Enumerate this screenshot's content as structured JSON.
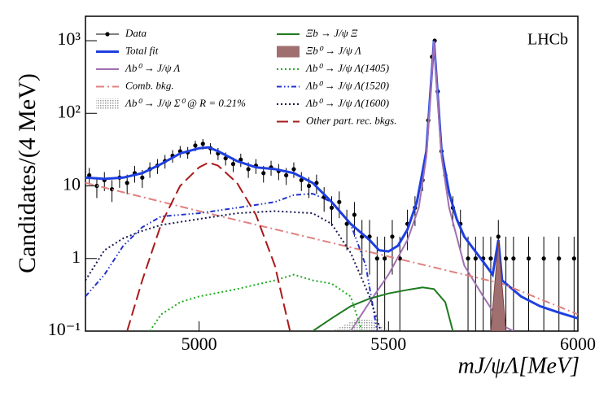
{
  "chart_data": {
    "type": "line",
    "log_y": true,
    "x_label": "mJ/ψΛ[MeV]",
    "y_label": "Candidates/(4 MeV)",
    "annotation": "LHCb",
    "xlim": [
      4700,
      6000
    ],
    "xticks": [
      5000,
      5500,
      6000
    ],
    "ylim": [
      0.1,
      2170
    ],
    "yticks": [
      {
        "value": 0.1,
        "label": "10⁻¹"
      },
      1,
      10,
      {
        "value": 100,
        "label": "10²"
      },
      {
        "value": 1000,
        "label": "10³"
      }
    ],
    "series": [
      {
        "name": "Data",
        "color": "#000000",
        "style": "points",
        "x": [
          4710,
          4730,
          4750,
          4770,
          4790,
          4810,
          4830,
          4850,
          4870,
          4890,
          4910,
          4930,
          4950,
          4970,
          4990,
          5010,
          5030,
          5050,
          5070,
          5090,
          5110,
          5130,
          5150,
          5170,
          5190,
          5210,
          5230,
          5250,
          5270,
          5290,
          5310,
          5330,
          5350,
          5370,
          5390,
          5410,
          5430,
          5450,
          5470,
          5490,
          5510,
          5530,
          5550,
          5570,
          5590,
          5605,
          5615,
          5622,
          5630,
          5640,
          5650,
          5670,
          5690,
          5710,
          5730,
          5750,
          5770,
          5790,
          5810,
          5830,
          5870,
          5910,
          5950,
          5990
        ],
        "values": [
          14,
          10,
          12,
          9,
          13,
          11,
          15,
          13,
          17,
          19,
          22,
          26,
          30,
          29,
          36,
          38,
          33,
          28,
          24,
          20,
          23,
          17,
          19,
          15,
          18,
          16,
          14,
          17,
          12,
          10,
          11,
          7,
          5,
          6,
          3,
          4,
          2,
          2,
          1,
          1,
          2,
          1,
          3,
          5,
          12,
          80,
          600,
          1000,
          200,
          30,
          14,
          5,
          3,
          1,
          1,
          1,
          1,
          2,
          1,
          1,
          1,
          1,
          1,
          1
        ],
        "errors": [
          3.7,
          3.2,
          3.5,
          3,
          3.6,
          3.3,
          3.9,
          3.6,
          4.1,
          4.4,
          4.7,
          5.1,
          5.5,
          5.4,
          6,
          6.2,
          5.7,
          5.3,
          4.9,
          4.5,
          4.8,
          4.1,
          4.4,
          3.9,
          4.2,
          4,
          3.7,
          4.1,
          3.5,
          3.2,
          3.3,
          2.6,
          2.2,
          2.4,
          1.7,
          2,
          1.4,
          1.4,
          1,
          1,
          1.4,
          1,
          1.7,
          2.2,
          3.5,
          9,
          24,
          32,
          14,
          5.5,
          3.7,
          2.2,
          1.7,
          1,
          1,
          1,
          1,
          1.4,
          1,
          1,
          1,
          1,
          1,
          1
        ]
      },
      {
        "name": "Total fit",
        "color": "#1f3fe0",
        "style": "thick",
        "x": [
          4700,
          4750,
          4800,
          4850,
          4900,
          4950,
          5000,
          5025,
          5050,
          5100,
          5150,
          5200,
          5250,
          5300,
          5350,
          5400,
          5450,
          5475,
          5500,
          5525,
          5550,
          5575,
          5600,
          5620,
          5640,
          5660,
          5680,
          5700,
          5750,
          5775,
          5790,
          5800,
          5850,
          5900,
          5950,
          6000
        ],
        "values": [
          13,
          12.5,
          13,
          15,
          20,
          28,
          33,
          34,
          30,
          22,
          18,
          17,
          15,
          11,
          6,
          3,
          1.8,
          1.3,
          1.25,
          1.5,
          2.5,
          6,
          30,
          1000,
          30,
          8,
          3.5,
          2,
          0.9,
          0.6,
          1.8,
          0.5,
          0.3,
          0.22,
          0.18,
          0.15
        ]
      },
      {
        "name": "Λb⁰ → J/ψ Λ",
        "color": "#a070b0",
        "style": "line",
        "x": [
          5400,
          5450,
          5500,
          5550,
          5580,
          5600,
          5620,
          5640,
          5660,
          5700,
          5750,
          5800,
          5830
        ],
        "values": [
          0.1,
          0.25,
          0.6,
          1.8,
          5,
          25,
          980,
          25,
          5,
          0.8,
          0.3,
          0.12,
          0.1
        ]
      },
      {
        "name": "Comb. bkg.",
        "color": "#e08080",
        "style": "dashdot",
        "x": [
          4700,
          5000,
          5300,
          5600,
          5800,
          6000
        ],
        "values": [
          11,
          4.5,
          1.9,
          0.8,
          0.45,
          0.17
        ]
      },
      {
        "name": "Λb⁰ → J/ψ Σ⁰ @ R = 0.21%",
        "color": "#b0b0b0",
        "style": "fill",
        "x": [
          5350,
          5420,
          5460,
          5500
        ],
        "values": [
          0.1,
          0.15,
          0.14,
          0.1
        ]
      },
      {
        "name": "Ξb → J/ψ Ξ",
        "color": "#1f7a1f",
        "style": "line",
        "x": [
          5300,
          5350,
          5400,
          5450,
          5500,
          5550,
          5590,
          5620,
          5650,
          5670
        ],
        "values": [
          0.1,
          0.15,
          0.22,
          0.28,
          0.33,
          0.37,
          0.4,
          0.38,
          0.25,
          0.1
        ]
      },
      {
        "name": "Ξb⁰ → J/ψ Λ",
        "color": "#a07070",
        "style": "fill",
        "x": [
          5770,
          5790,
          5810
        ],
        "values": [
          0.1,
          1.7,
          0.1
        ]
      },
      {
        "name": "Λb⁰ → J/ψ Λ(1405)",
        "color": "#22aa22",
        "style": "dotted",
        "x": [
          4870,
          4900,
          4950,
          5000,
          5100,
          5200,
          5250,
          5300,
          5350,
          5400,
          5430
        ],
        "values": [
          0.1,
          0.17,
          0.25,
          0.3,
          0.38,
          0.5,
          0.6,
          0.5,
          0.45,
          0.3,
          0.1
        ]
      },
      {
        "name": "Λb⁰ → J/ψ Λ(1520)",
        "color": "#2233cc",
        "style": "dashdotdot",
        "x": [
          4700,
          4750,
          4800,
          4850,
          4900,
          5000,
          5100,
          5200,
          5250,
          5300,
          5350,
          5400,
          5440,
          5470
        ],
        "values": [
          0.3,
          0.6,
          1.5,
          2.7,
          3.8,
          4.2,
          5,
          6,
          7.5,
          7.8,
          6,
          3,
          0.8,
          0.1
        ]
      },
      {
        "name": "Λb⁰ → J/ψ Λ(1600)",
        "color": "#1a1a50",
        "style": "dotted",
        "x": [
          4700,
          4750,
          4800,
          4850,
          4900,
          5000,
          5100,
          5200,
          5300,
          5350,
          5400,
          5450,
          5480
        ],
        "values": [
          0.5,
          1.3,
          1.9,
          2.4,
          2.9,
          3.5,
          4.2,
          4.5,
          4.2,
          3,
          1.2,
          0.3,
          0.1
        ]
      },
      {
        "name": "Other part. rec. bkgs.",
        "color": "#aa1a1a",
        "style": "dashed",
        "x": [
          4810,
          4850,
          4900,
          4950,
          5000,
          5025,
          5050,
          5100,
          5150,
          5200,
          5240
        ],
        "values": [
          0.1,
          0.5,
          3,
          10,
          18,
          21,
          19,
          11,
          4,
          0.8,
          0.1
        ]
      }
    ]
  }
}
